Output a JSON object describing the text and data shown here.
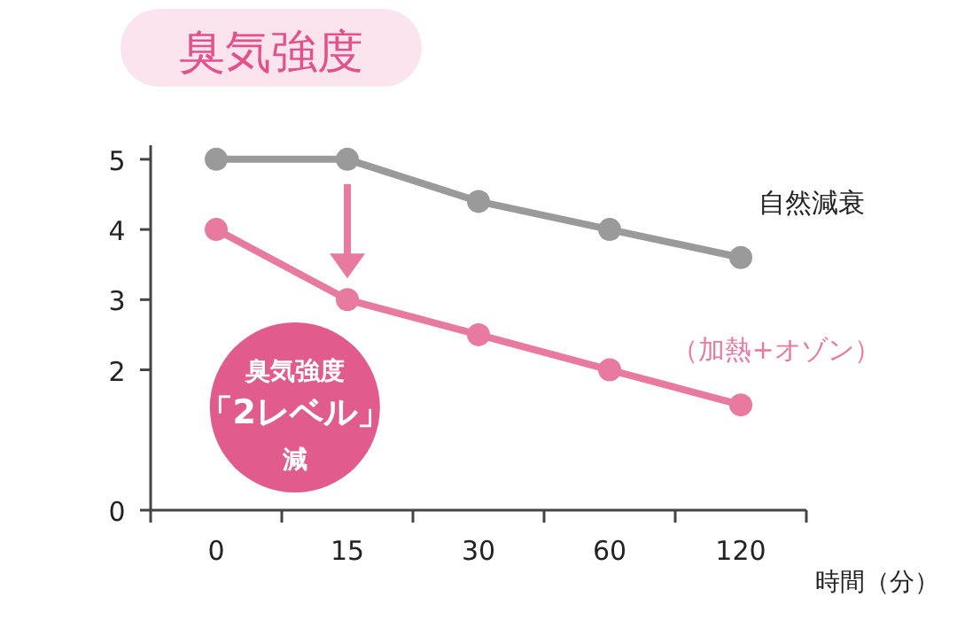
{
  "chart_data": {
    "type": "line",
    "title": "臭気強度",
    "categories": [
      "0",
      "15",
      "30",
      "60",
      "120"
    ],
    "xlabel": "時間（分）",
    "ylim": [
      0,
      5.2
    ],
    "yticks": [
      0,
      2,
      3,
      4,
      5
    ],
    "marker": "circle",
    "series": [
      {
        "name": "自然減衰",
        "color": "#9a9a9a",
        "values": [
          5,
          5,
          4.4,
          4,
          3.6
        ]
      },
      {
        "name": "（加熱+オゾン）",
        "color": "#e8799f",
        "values": [
          4,
          3,
          2.5,
          2,
          1.5
        ]
      }
    ],
    "annotations": [
      "臭気強度",
      "「2レベル」",
      "減"
    ]
  }
}
